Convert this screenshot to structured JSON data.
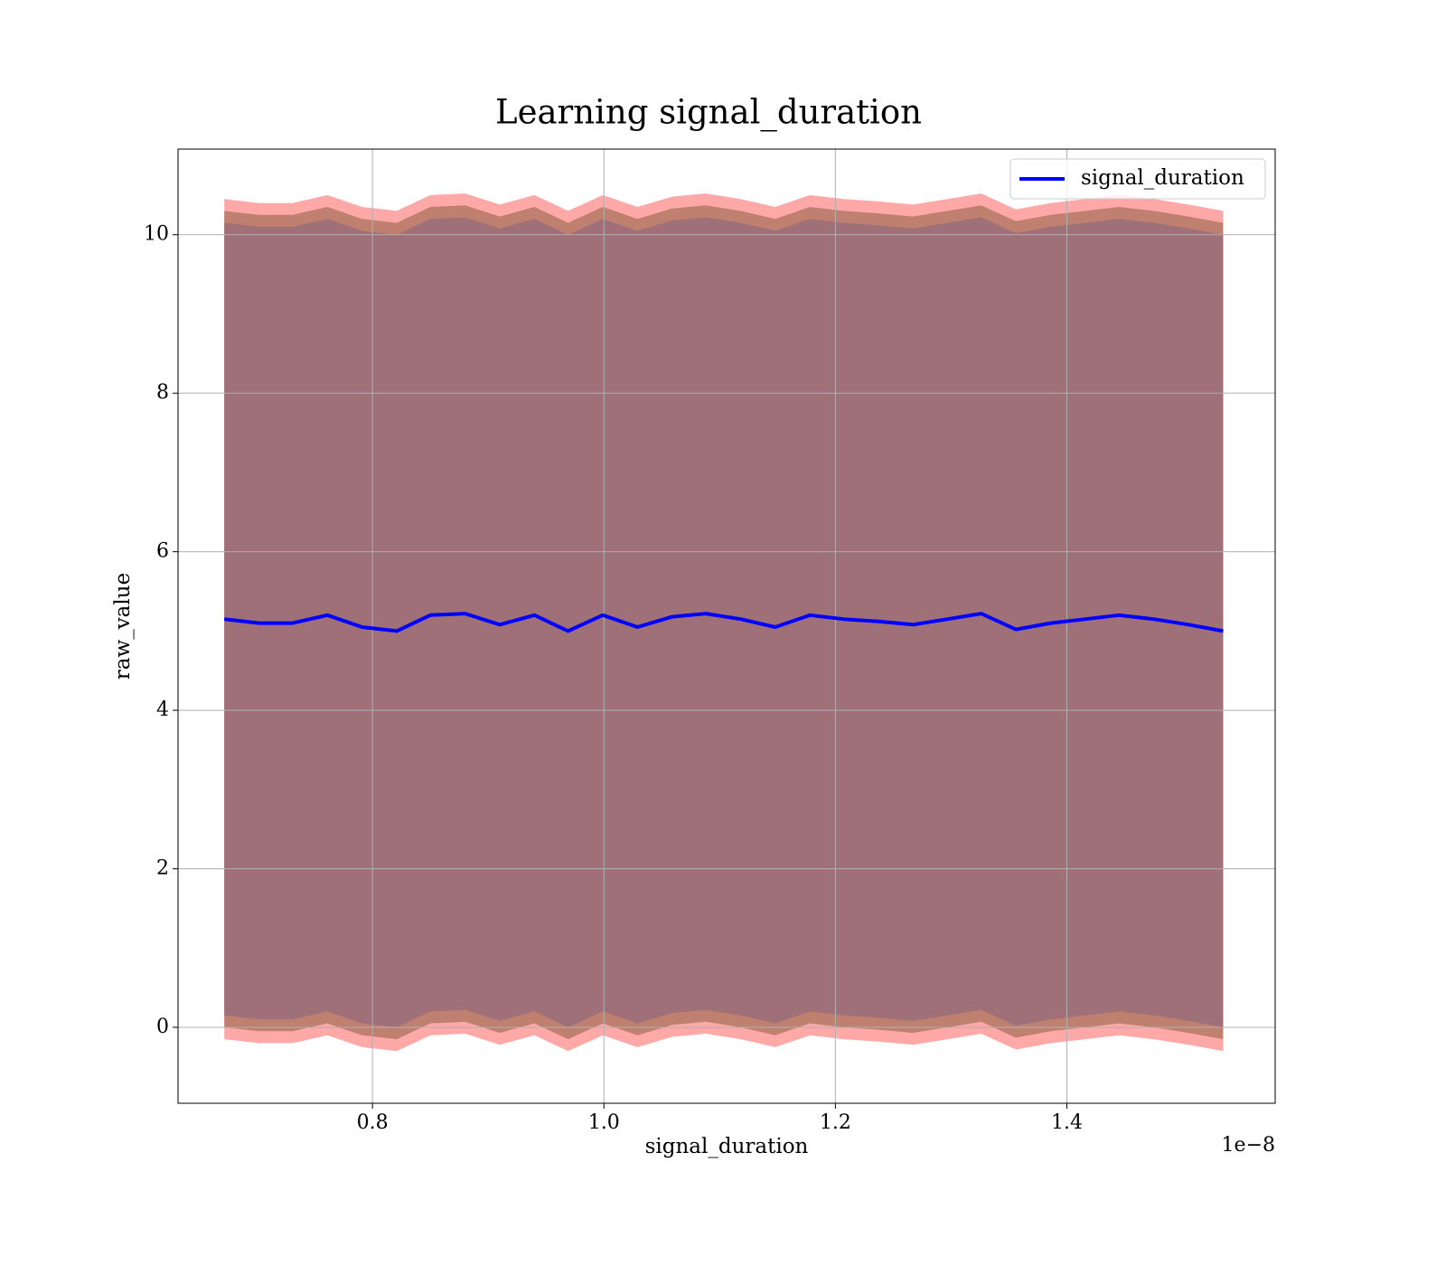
{
  "chart_data": {
    "type": "line",
    "title": "Learning signal_duration",
    "x_label": "signal_duration",
    "y_label": "raw_value",
    "x_offset_label": "1e−8",
    "xlim": [
      0.632,
      1.58
    ],
    "ylim": [
      -0.958,
      11.08
    ],
    "xticks": [
      0.8,
      {
        "value": 1.0,
        "label": "1.0"
      },
      1.2,
      1.4
    ],
    "yticks": [
      0,
      2,
      4,
      6,
      8,
      10
    ],
    "grid": true,
    "legend": "upper right",
    "x": [
      0.672,
      0.702,
      0.731,
      0.761,
      0.791,
      0.821,
      0.85,
      0.88,
      0.91,
      0.94,
      0.969,
      0.999,
      1.029,
      1.059,
      1.088,
      1.118,
      1.148,
      1.178,
      1.207,
      1.237,
      1.267,
      1.297,
      1.326,
      1.356,
      1.386,
      1.416,
      1.445,
      1.475,
      1.505,
      1.535
    ],
    "bands": [
      {
        "color": "#ffa8a8",
        "upper": [
          10.45,
          10.4,
          10.4,
          10.5,
          10.35,
          10.3,
          10.5,
          10.52,
          10.38,
          10.5,
          10.3,
          10.5,
          10.35,
          10.48,
          10.52,
          10.45,
          10.35,
          10.5,
          10.45,
          10.42,
          10.38,
          10.45,
          10.52,
          10.32,
          10.4,
          10.45,
          10.5,
          10.45,
          10.38,
          10.3
        ],
        "lower": [
          -0.15,
          -0.2,
          -0.2,
          -0.1,
          -0.25,
          -0.3,
          -0.1,
          -0.08,
          -0.22,
          -0.1,
          -0.3,
          -0.1,
          -0.25,
          -0.12,
          -0.08,
          -0.15,
          -0.25,
          -0.1,
          -0.15,
          -0.18,
          -0.22,
          -0.15,
          -0.08,
          -0.28,
          -0.2,
          -0.15,
          -0.1,
          -0.15,
          -0.22,
          -0.3
        ]
      },
      {
        "color": "#c08070",
        "upper": [
          10.3,
          10.25,
          10.25,
          10.35,
          10.2,
          10.15,
          10.35,
          10.37,
          10.23,
          10.35,
          10.15,
          10.35,
          10.2,
          10.33,
          10.37,
          10.3,
          10.2,
          10.35,
          10.3,
          10.27,
          10.23,
          10.3,
          10.37,
          10.17,
          10.25,
          10.3,
          10.35,
          10.3,
          10.23,
          10.15
        ],
        "lower": [
          0.0,
          -0.05,
          -0.05,
          0.05,
          -0.1,
          -0.15,
          0.05,
          0.07,
          -0.07,
          0.05,
          -0.15,
          0.05,
          -0.1,
          0.03,
          0.07,
          0.0,
          -0.1,
          0.05,
          0.0,
          -0.03,
          -0.07,
          0.0,
          0.07,
          -0.13,
          -0.05,
          0.0,
          0.05,
          0.0,
          -0.07,
          -0.15
        ]
      },
      {
        "color": "#a07078",
        "upper": [
          10.15,
          10.1,
          10.1,
          10.2,
          10.05,
          10.0,
          10.2,
          10.22,
          10.08,
          10.2,
          10.0,
          10.2,
          10.05,
          10.18,
          10.22,
          10.15,
          10.05,
          10.2,
          10.15,
          10.12,
          10.08,
          10.15,
          10.22,
          10.02,
          10.1,
          10.15,
          10.2,
          10.15,
          10.08,
          10.0
        ],
        "lower": [
          0.15,
          0.1,
          0.1,
          0.2,
          0.05,
          0.0,
          0.2,
          0.22,
          0.08,
          0.2,
          0.0,
          0.2,
          0.05,
          0.18,
          0.22,
          0.15,
          0.05,
          0.2,
          0.15,
          0.12,
          0.08,
          0.15,
          0.22,
          0.02,
          0.1,
          0.15,
          0.2,
          0.15,
          0.08,
          0.0
        ]
      }
    ],
    "series": [
      {
        "name": "signal_duration",
        "color": "#0000ff",
        "values": [
          5.15,
          5.1,
          5.1,
          5.2,
          5.05,
          5.0,
          5.2,
          5.22,
          5.08,
          5.2,
          5.0,
          5.2,
          5.05,
          5.18,
          5.22,
          5.15,
          5.05,
          5.2,
          5.15,
          5.12,
          5.08,
          5.15,
          5.22,
          5.02,
          5.1,
          5.15,
          5.2,
          5.15,
          5.08,
          5.0
        ]
      }
    ]
  }
}
